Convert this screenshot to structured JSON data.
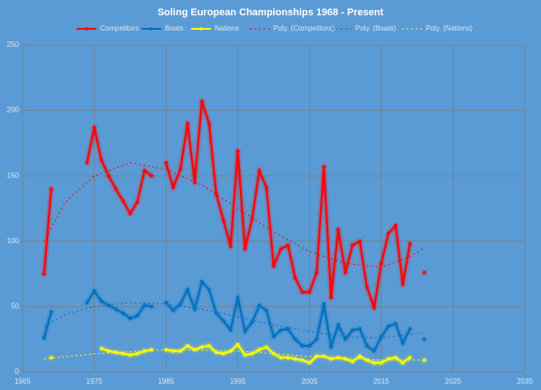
{
  "chart_data": {
    "type": "line",
    "title": "Soling European Championships 1968 - Present",
    "x": [
      1968,
      1969,
      1970,
      1971,
      1972,
      1973,
      1974,
      1975,
      1976,
      1977,
      1978,
      1979,
      1980,
      1981,
      1982,
      1983,
      1984,
      1985,
      1986,
      1987,
      1988,
      1989,
      1990,
      1991,
      1992,
      1993,
      1994,
      1995,
      1996,
      1997,
      1998,
      1999,
      2000,
      2001,
      2002,
      2003,
      2004,
      2005,
      2006,
      2007,
      2008,
      2009,
      2010,
      2011,
      2012,
      2013,
      2014,
      2015,
      2016,
      2017,
      2018,
      2019,
      2020,
      2021
    ],
    "series": [
      {
        "name": "Competitors",
        "color": "#ff0000",
        "style": "solid",
        "values": [
          75,
          140,
          null,
          null,
          null,
          null,
          160,
          187,
          162,
          150,
          140,
          131,
          121,
          130,
          154,
          150,
          null,
          160,
          141,
          155,
          190,
          145,
          207,
          190,
          136,
          116,
          96,
          169,
          94,
          117,
          154,
          141,
          81,
          94,
          97,
          72,
          61,
          61,
          76,
          157,
          57,
          109,
          76,
          97,
          100,
          65,
          49,
          83,
          106,
          112,
          67,
          98,
          null,
          76
        ]
      },
      {
        "name": "Boats",
        "color": "#0070c0",
        "style": "solid",
        "values": [
          26,
          46,
          null,
          null,
          null,
          null,
          53,
          62,
          54,
          51,
          48,
          45,
          41,
          43,
          51,
          50,
          null,
          53,
          47,
          52,
          63,
          48,
          69,
          63,
          45,
          39,
          32,
          57,
          31,
          38,
          51,
          47,
          27,
          32,
          33,
          25,
          20,
          20,
          25,
          52,
          19,
          36,
          25,
          32,
          33,
          20,
          16,
          27,
          35,
          37,
          22,
          33,
          null,
          25
        ]
      },
      {
        "name": "Nations",
        "color": "#ffff00",
        "style": "solid",
        "values": [
          null,
          11,
          null,
          null,
          null,
          null,
          null,
          null,
          18,
          16,
          15,
          14,
          13,
          14,
          16,
          17,
          null,
          17,
          16,
          16,
          20,
          17,
          19,
          20,
          15,
          14,
          16,
          21,
          13,
          14,
          17,
          19,
          14,
          11,
          11,
          10,
          9,
          7,
          12,
          12,
          10,
          11,
          10,
          8,
          12,
          9,
          7,
          7,
          10,
          11,
          7,
          11,
          null,
          9
        ]
      },
      {
        "name": "Poly. (Competitors)",
        "color": "#ff0000",
        "style": "dotted",
        "x": [
          1968,
          1971,
          1975,
          1980,
          1985,
          1990,
          1995,
          2000,
          2005,
          2010,
          2015,
          2019,
          2021
        ],
        "values": [
          100,
          130,
          150,
          160,
          155,
          143,
          125,
          107,
          92,
          83,
          80,
          88,
          95
        ]
      },
      {
        "name": "Poly. (Boats)",
        "color": "#0070c0",
        "style": "dotted",
        "x": [
          1968,
          1971,
          1975,
          1980,
          1985,
          1990,
          1995,
          2000,
          2005,
          2010,
          2015,
          2021
        ],
        "values": [
          35,
          44,
          50,
          53,
          52,
          48,
          42,
          36,
          31,
          27,
          26,
          30
        ]
      },
      {
        "name": "Poly. (Nations)",
        "color": "#ffff00",
        "style": "dotted",
        "x": [
          1968,
          1975,
          1985,
          1995,
          2005,
          2015,
          2021
        ],
        "values": [
          10,
          14,
          17,
          16,
          12,
          9,
          9
        ]
      }
    ],
    "xlim": [
      1965,
      2035
    ],
    "xticks": [
      1965,
      1975,
      1985,
      1995,
      2005,
      2015,
      2025,
      2035
    ],
    "ylim": [
      0,
      250
    ],
    "yticks": [
      0,
      50,
      100,
      150,
      200,
      250
    ],
    "grid": true,
    "legend": "top"
  }
}
